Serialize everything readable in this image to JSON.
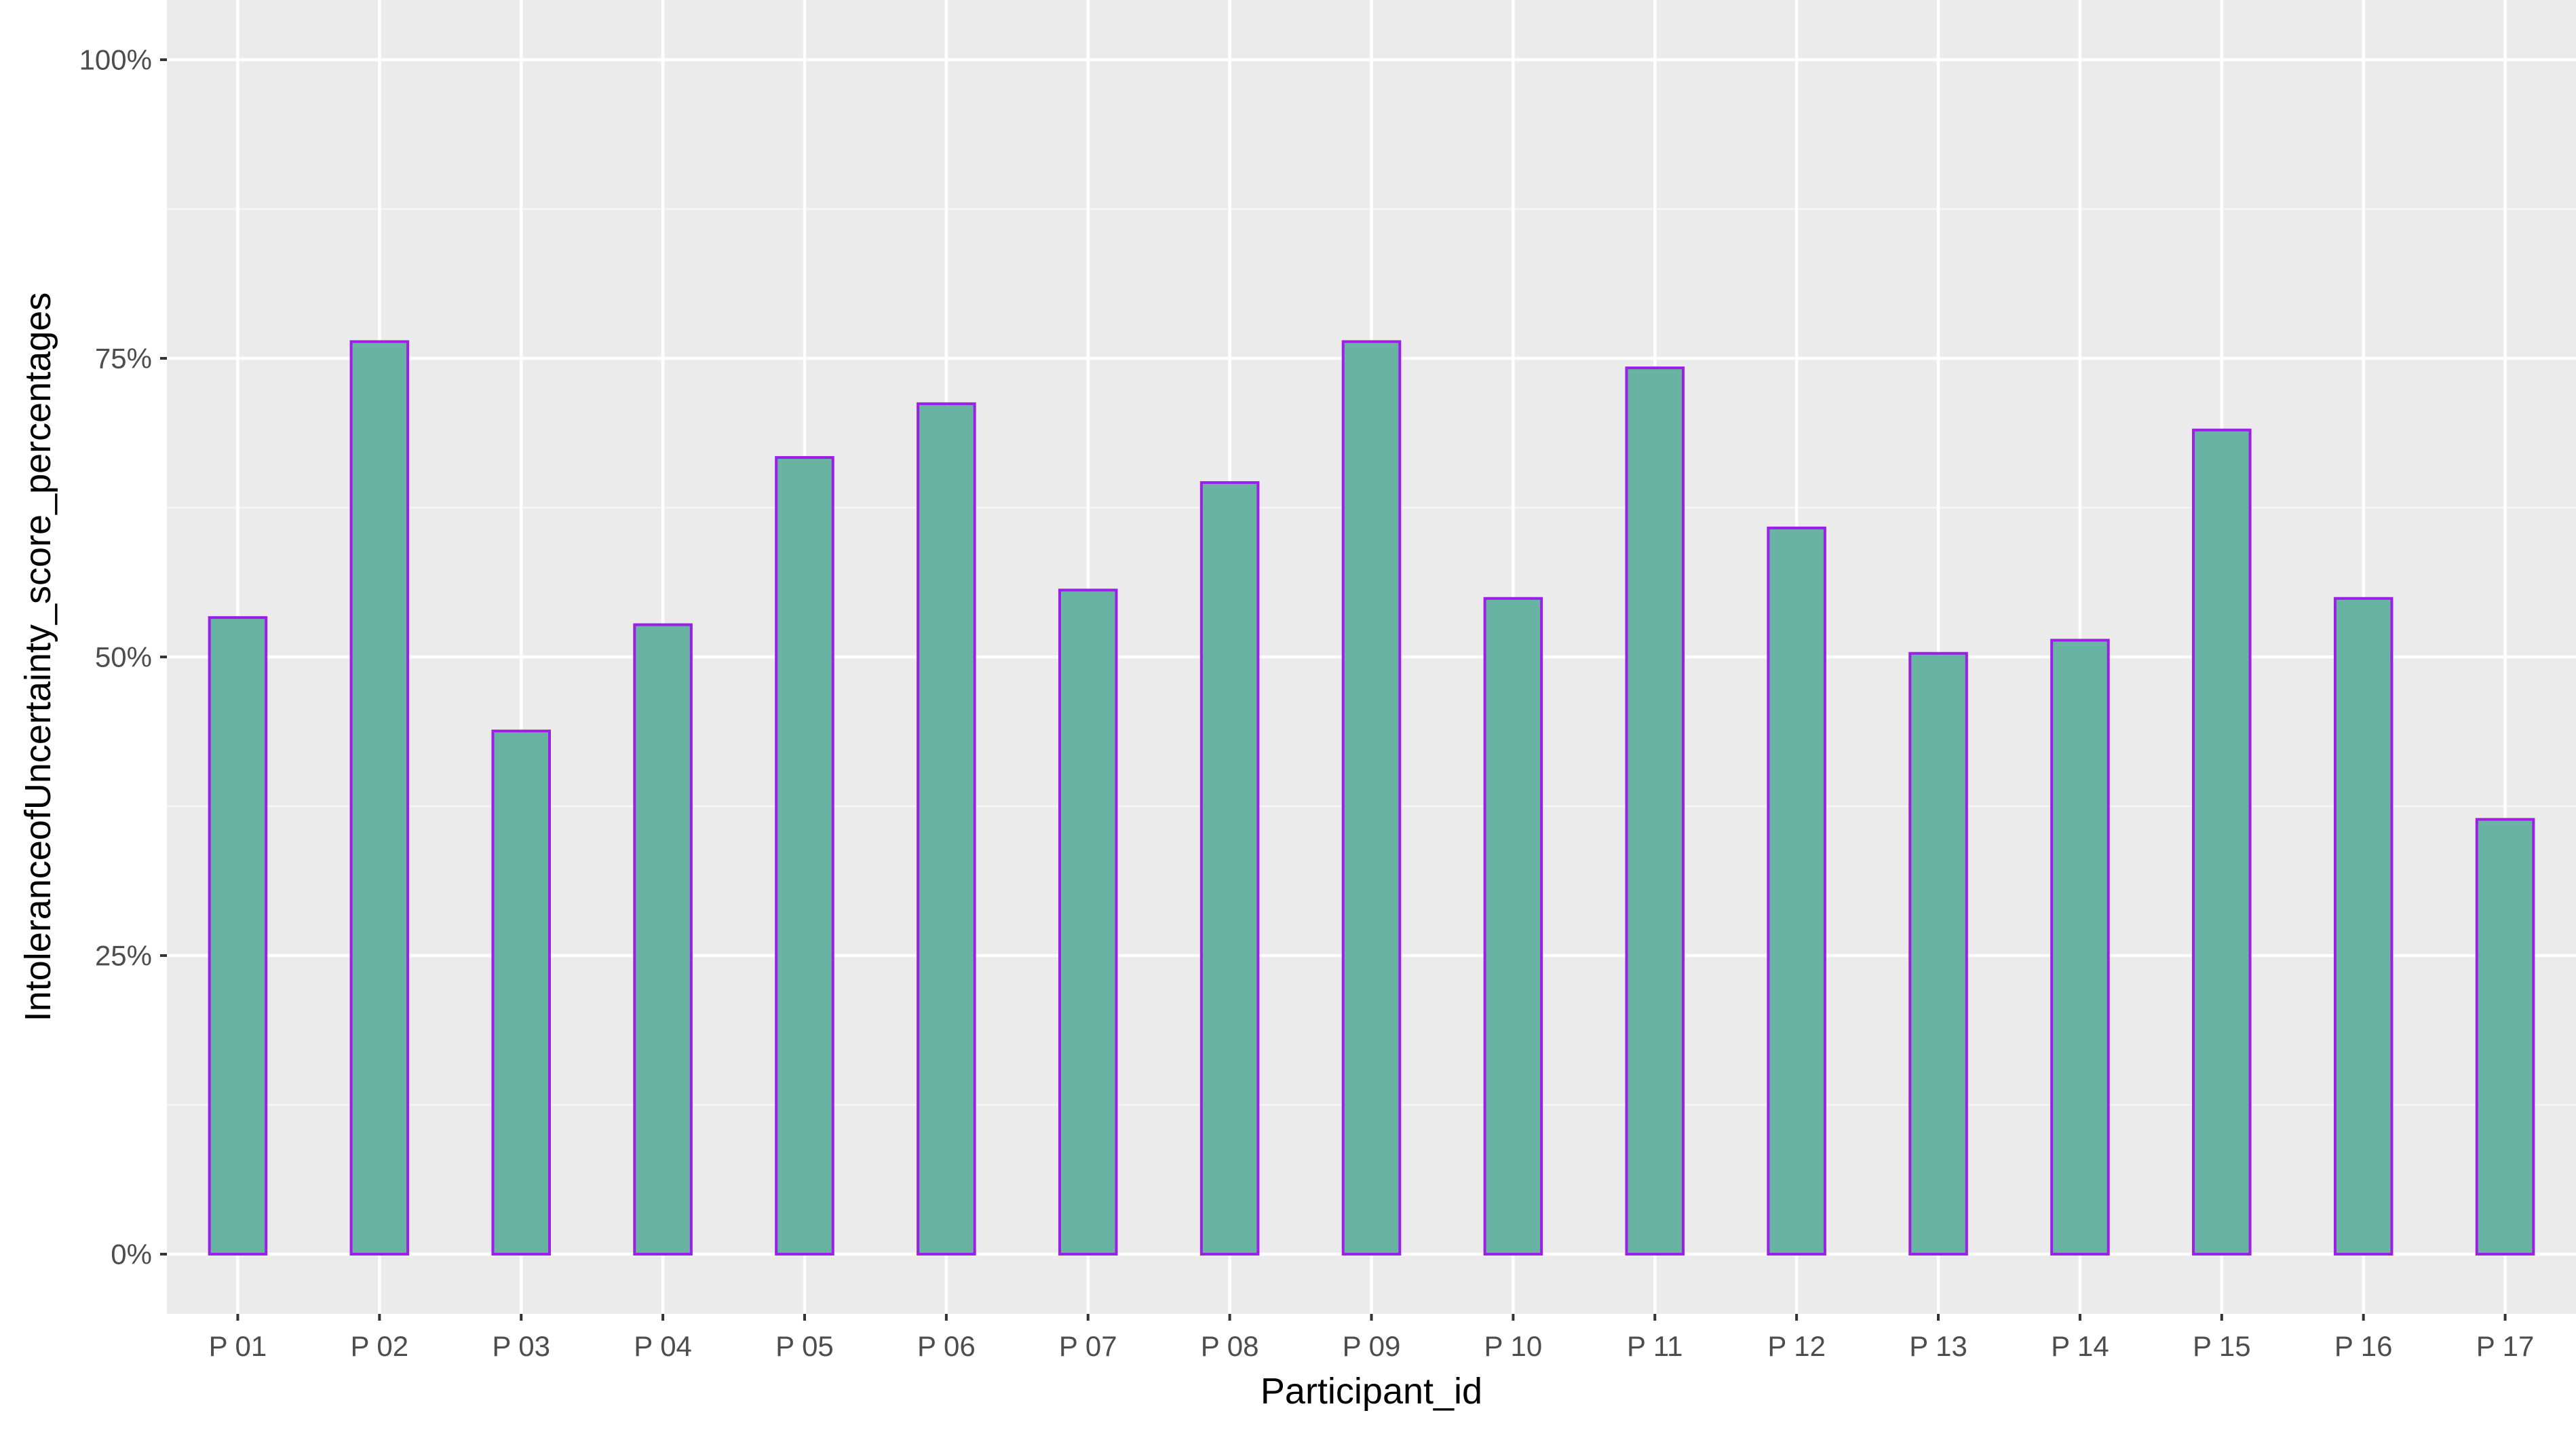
{
  "chart_data": {
    "type": "bar",
    "xlabel": "Participant_id",
    "ylabel": "IntoleranceofUncertainty_score_percentages",
    "ylim": [
      -0.05,
      1.05
    ],
    "grid": true,
    "y_ticks": [
      {
        "value": 0.0,
        "label": "0%"
      },
      {
        "value": 0.25,
        "label": "25%"
      },
      {
        "value": 0.5,
        "label": "50%"
      },
      {
        "value": 0.75,
        "label": "75%"
      },
      {
        "value": 1.0,
        "label": "100%"
      }
    ],
    "categories": [
      "P 01",
      "P 02",
      "P 03",
      "P 04",
      "P 05",
      "P 06",
      "P 07",
      "P 08",
      "P 09",
      "P 10",
      "P 11",
      "P 12",
      "P 13",
      "P 14",
      "P 15",
      "P 16",
      "P 17"
    ],
    "values": [
      0.533,
      0.764,
      0.438,
      0.527,
      0.667,
      0.712,
      0.556,
      0.646,
      0.764,
      0.549,
      0.742,
      0.608,
      0.503,
      0.514,
      0.69,
      0.549,
      0.364
    ],
    "colors": {
      "panel_background": "#ebebeb",
      "grid_major": "#ffffff",
      "grid_minor": "#f5f5f5",
      "bar_fill": "#69b3a2",
      "bar_outline": "#9b1fe8",
      "tick_text": "#4d4d4d",
      "axis_title": "#000000"
    }
  }
}
